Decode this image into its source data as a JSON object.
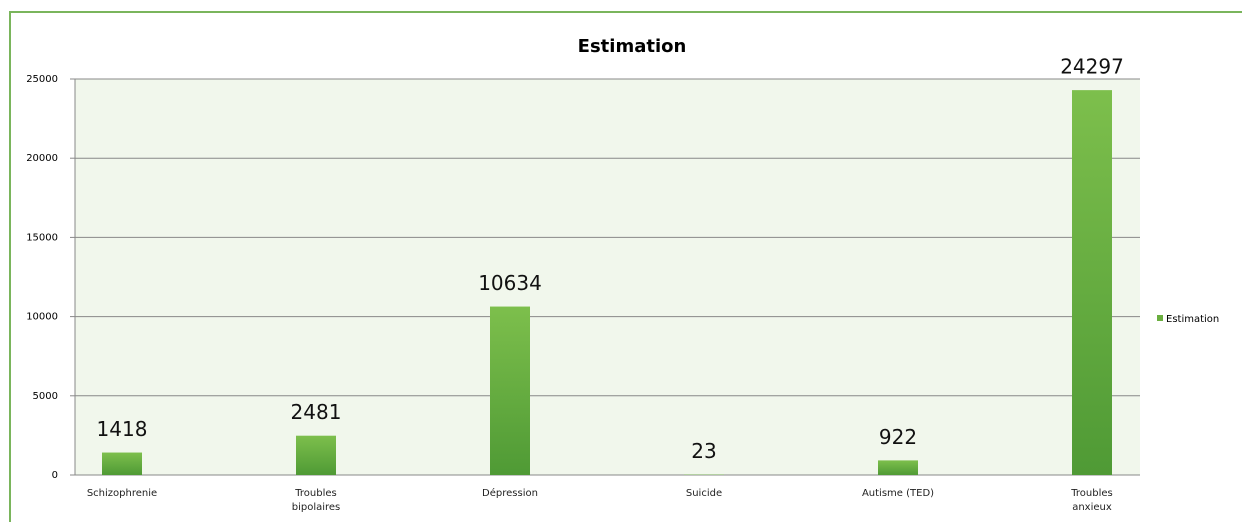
{
  "chart_data": {
    "type": "bar",
    "title": "Estimation",
    "categories": [
      "Schizophrenie",
      "Troubles bipolaires",
      "Dépression",
      "Suicide",
      "Autisme (TED)",
      "Troubles anxieux"
    ],
    "series": [
      {
        "name": "Estimation",
        "color": "#6aae3f",
        "values": [
          1418,
          2481,
          10634,
          23,
          922,
          24297
        ]
      }
    ],
    "ylim": [
      0,
      25000
    ],
    "yticks": [
      0,
      5000,
      10000,
      15000,
      20000,
      25000
    ],
    "grid": true,
    "legend": "right"
  }
}
